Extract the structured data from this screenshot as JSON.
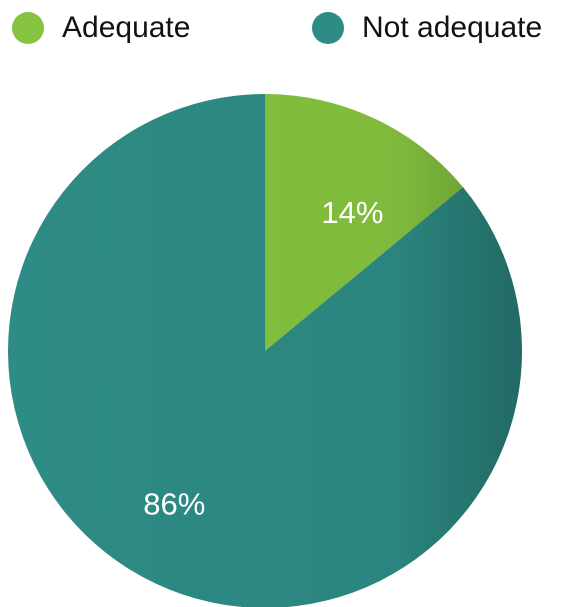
{
  "chart_data": {
    "type": "pie",
    "title": "",
    "legend_position": "top",
    "slices": [
      {
        "name": "Adequate",
        "value": 14,
        "label": "14%",
        "color": "#86c43f"
      },
      {
        "name": "Not adequate",
        "value": 86,
        "label": "86%",
        "color": "#2d8c85"
      }
    ]
  }
}
